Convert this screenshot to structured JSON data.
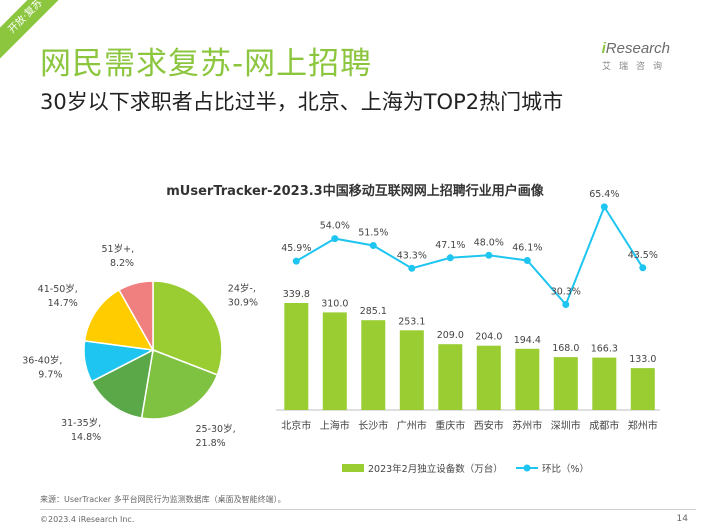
{
  "corner_tag": "开放·复苏",
  "header": {
    "title": "网民需求复苏-网上招聘",
    "subtitle": "30岁以下求职者占比过半，北京、上海为TOP2热门城市"
  },
  "logo": {
    "prefix": "i",
    "name": "Research",
    "sub": "艾瑞咨询"
  },
  "chart_title": "mUserTracker-2023.3中国移动互联网网上招聘行业用户画像",
  "chart_data": [
    {
      "type": "pie",
      "categories": [
        "24岁-",
        "25-30岁",
        "31-35岁",
        "36-40岁",
        "41-50岁",
        "51岁+"
      ],
      "values": [
        30.9,
        21.8,
        14.8,
        9.7,
        14.7,
        8.2
      ],
      "value_labels": [
        "30.9%",
        "21.8%",
        "14.8%",
        "9.7%",
        "14.7%",
        "8.2%"
      ],
      "colors": [
        "#9acd32",
        "#7fc241",
        "#5aa847",
        "#1ec5f0",
        "#ffcc00",
        "#f08080"
      ]
    },
    {
      "type": "bar",
      "categories": [
        "北京市",
        "上海市",
        "长沙市",
        "广州市",
        "重庆市",
        "西安市",
        "苏州市",
        "深圳市",
        "成都市",
        "郑州市"
      ],
      "series": [
        {
          "name": "2023年2月独立设备数（万台）",
          "type": "bar",
          "color": "#9acd32",
          "values": [
            339.8,
            310.0,
            285.1,
            253.1,
            209.0,
            204.0,
            194.4,
            168.0,
            166.3,
            133.0
          ],
          "labels": [
            "339.8",
            "310.0",
            "285.1",
            "253.1",
            "209.0",
            "204.0",
            "194.4",
            "168.0",
            "166.3",
            "133.0"
          ]
        },
        {
          "name": "环比（%）",
          "type": "line",
          "color": "#1ec5f0",
          "values": [
            45.9,
            54.0,
            51.5,
            43.3,
            47.1,
            48.0,
            46.1,
            30.3,
            65.4,
            43.5
          ],
          "labels": [
            "45.9%",
            "54.0%",
            "51.5%",
            "43.3%",
            "47.1%",
            "48.0%",
            "46.1%",
            "30.3%",
            "65.4%",
            "43.5%"
          ]
        }
      ],
      "legend_position": "bottom"
    }
  ],
  "source": "来源：UserTracker 多平台网民行为监测数据库（桌面及智能终端）。",
  "copyright": "©2023.4 iResearch Inc.",
  "page_number": "14"
}
